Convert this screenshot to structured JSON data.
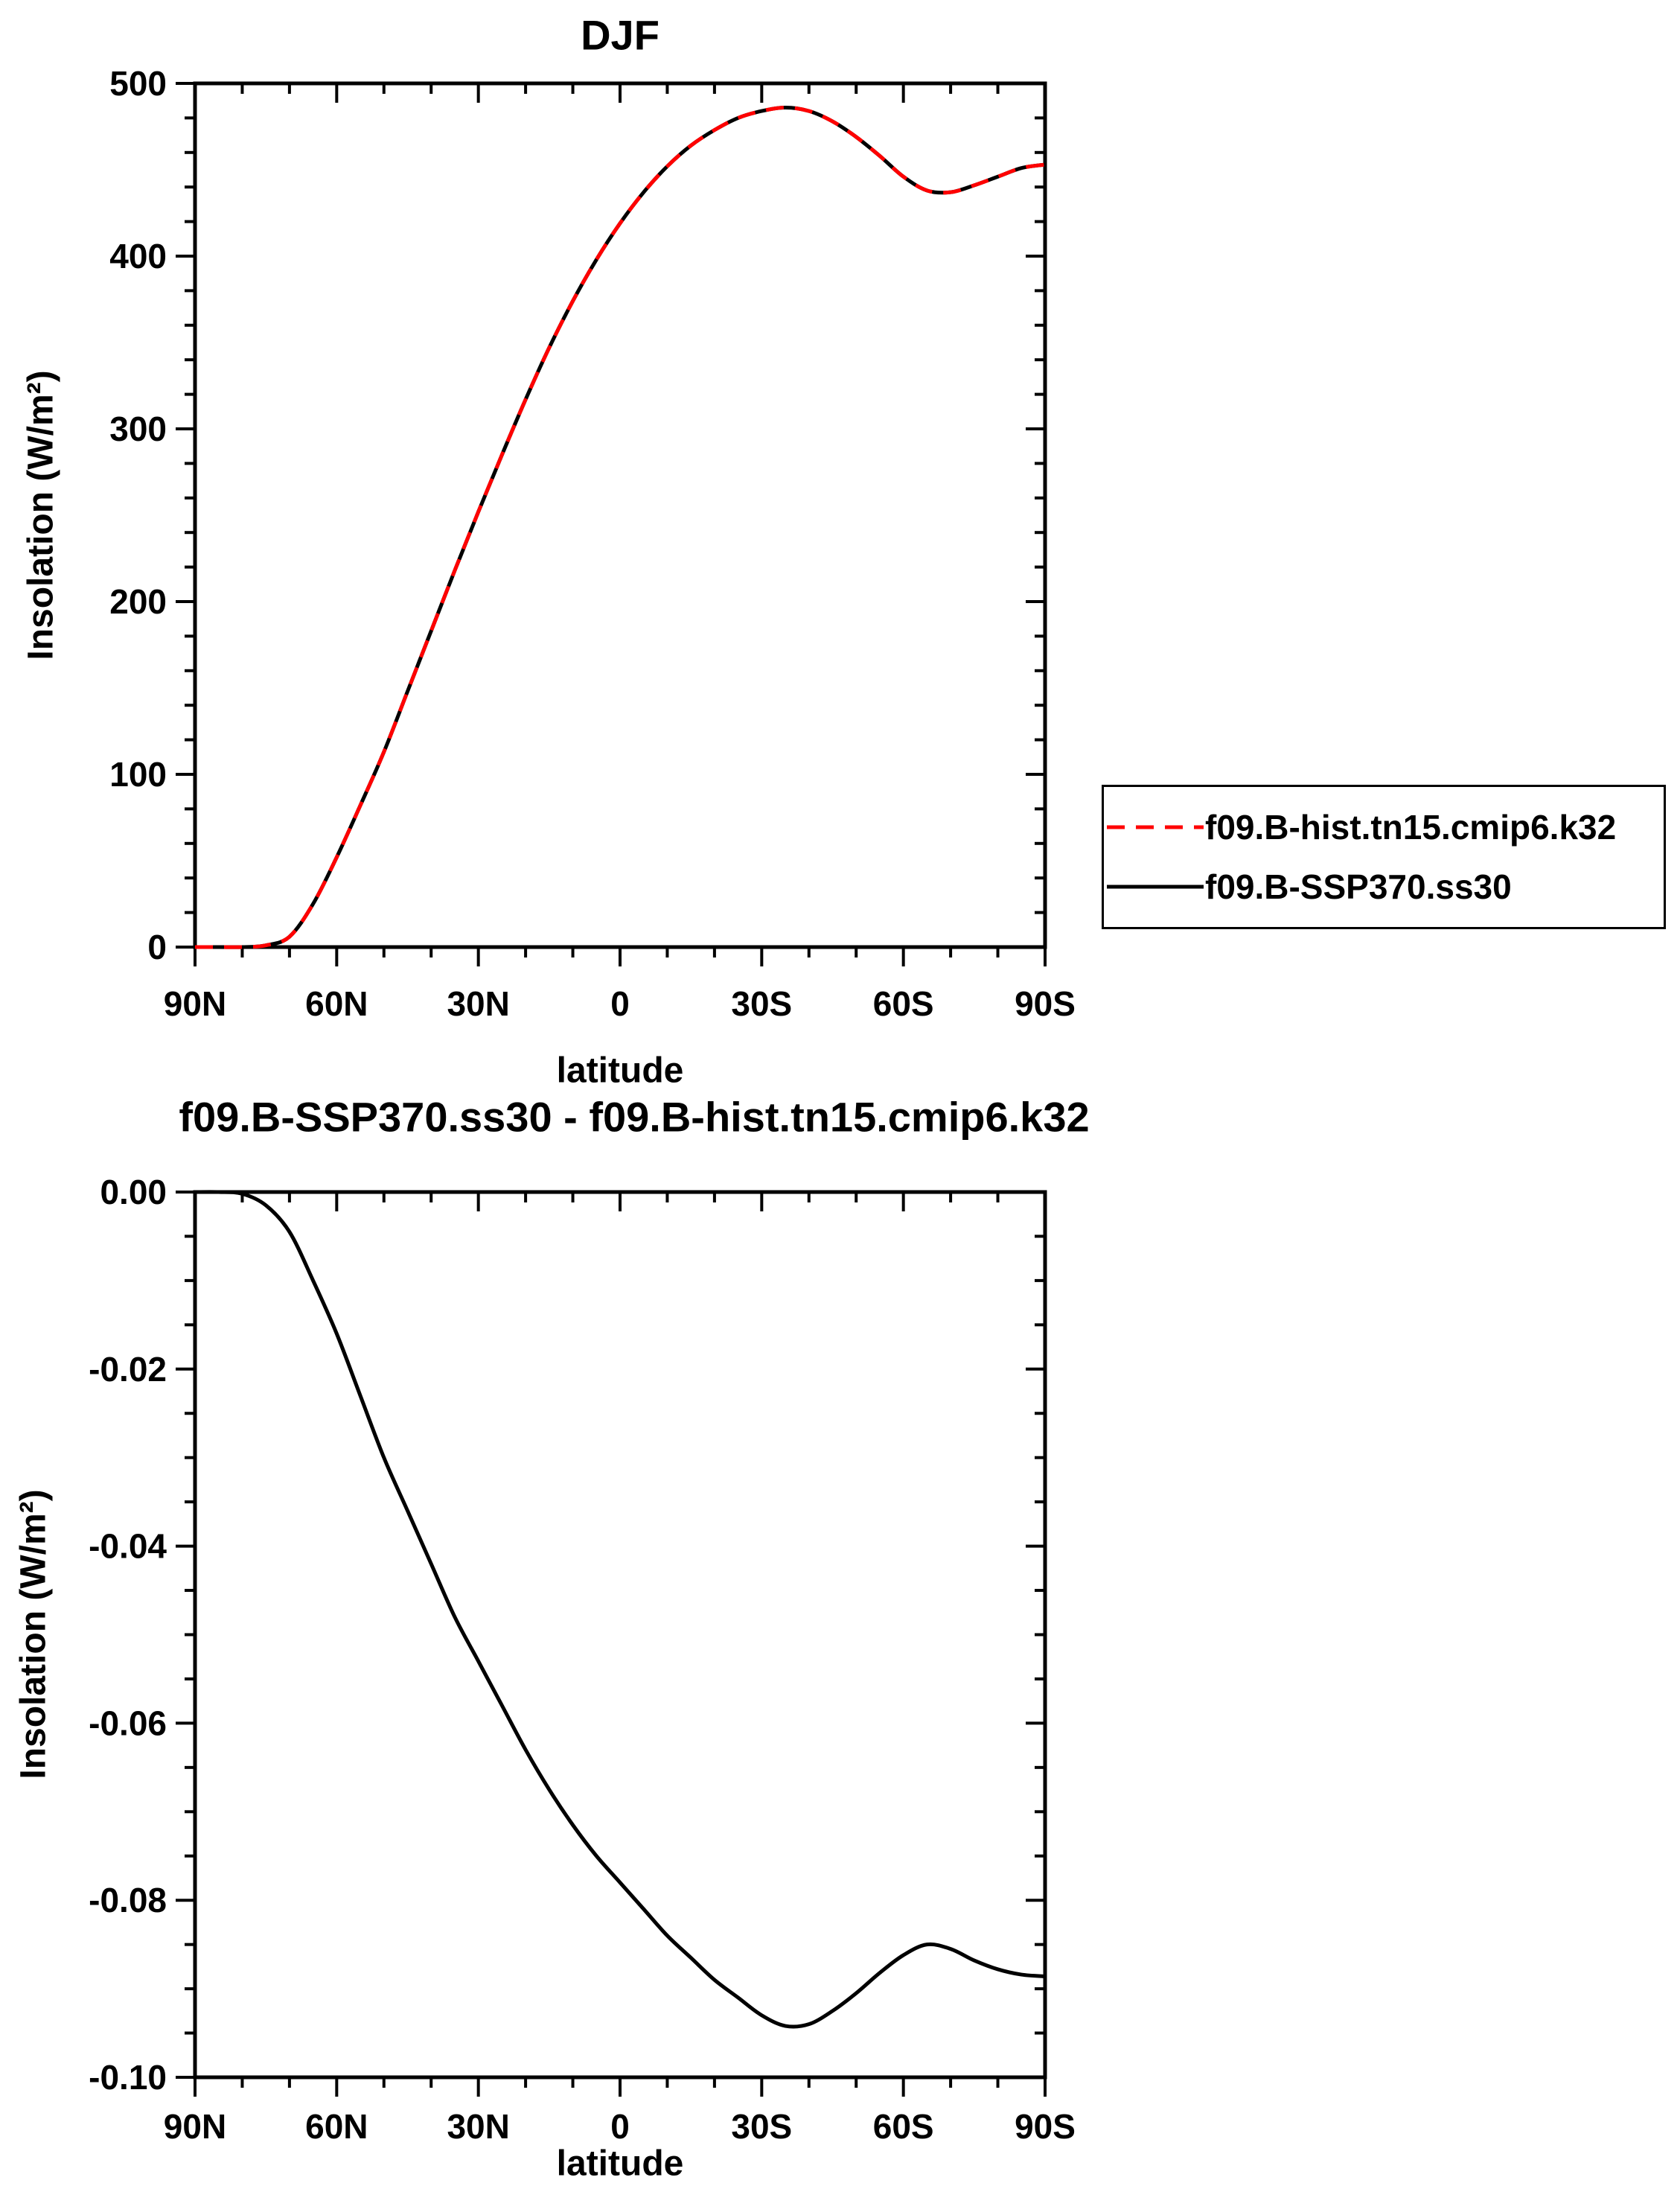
{
  "colors": {
    "hist": "#ff0000",
    "ssp": "#000000",
    "axis": "#000000",
    "background": "#ffffff"
  },
  "legend": {
    "entries": [
      {
        "label": "f09.B-hist.tn15.cmip6.k32",
        "color": "#ff0000",
        "style": "dashed"
      },
      {
        "label": "f09.B-SSP370.ss30",
        "color": "#000000",
        "style": "solid"
      }
    ],
    "position": "outside-right"
  },
  "chart_data": [
    {
      "type": "line",
      "title": "DJF",
      "xlabel": "latitude",
      "ylabel": "Insolation (W/m²)",
      "xlim": [
        90,
        -90
      ],
      "ylim": [
        0,
        500
      ],
      "grid": false,
      "xticks": {
        "values": [
          90,
          60,
          30,
          0,
          -30,
          -60,
          -90
        ],
        "labels": [
          "90N",
          "60N",
          "30N",
          "0",
          "30S",
          "60S",
          "90S"
        ],
        "minor_step": 10
      },
      "yticks": {
        "values": [
          0,
          100,
          200,
          300,
          400,
          500
        ],
        "labels": [
          "0",
          "100",
          "200",
          "300",
          "400",
          "500"
        ],
        "minor_step": 20
      },
      "series": [
        {
          "name": "f09.B-SSP370.ss30",
          "color": "#000000",
          "dash": "solid",
          "x": [
            90,
            85,
            80,
            75,
            70,
            65,
            60,
            55,
            50,
            45,
            40,
            35,
            30,
            25,
            20,
            15,
            10,
            5,
            0,
            -5,
            -10,
            -15,
            -20,
            -25,
            -30,
            -35,
            -40,
            -45,
            -50,
            -55,
            -60,
            -65,
            -70,
            -75,
            -80,
            -85,
            -90
          ],
          "y": [
            0,
            0,
            0,
            1,
            6,
            25,
            52,
            82,
            113,
            148,
            183,
            218,
            252,
            285,
            317,
            347,
            374,
            398,
            419,
            437,
            452,
            464,
            473,
            480,
            484,
            486,
            484,
            478,
            469,
            458,
            446,
            438,
            437,
            441,
            446,
            451,
            453
          ]
        },
        {
          "name": "f09.B-hist.tn15.cmip6.k32",
          "color": "#ff0000",
          "dash": "dashed",
          "x": [
            90,
            85,
            80,
            75,
            70,
            65,
            60,
            55,
            50,
            45,
            40,
            35,
            30,
            25,
            20,
            15,
            10,
            5,
            0,
            -5,
            -10,
            -15,
            -20,
            -25,
            -30,
            -35,
            -40,
            -45,
            -50,
            -55,
            -60,
            -65,
            -70,
            -75,
            -80,
            -85,
            -90
          ],
          "y": [
            0,
            0,
            0,
            1,
            6,
            25,
            52,
            82,
            113,
            148,
            183,
            218,
            252,
            285,
            317,
            347,
            374,
            398,
            419,
            437,
            452,
            464,
            473,
            480,
            484,
            486,
            484,
            478,
            469,
            458,
            446,
            438,
            437,
            441,
            446,
            451,
            453
          ]
        }
      ]
    },
    {
      "type": "line",
      "title": "f09.B-SSP370.ss30 - f09.B-hist.tn15.cmip6.k32",
      "xlabel": "latitude",
      "ylabel": "Insolation (W/m²)",
      "xlim": [
        90,
        -90
      ],
      "ylim": [
        -0.1,
        0.0
      ],
      "grid": false,
      "xticks": {
        "values": [
          90,
          60,
          30,
          0,
          -30,
          -60,
          -90
        ],
        "labels": [
          "90N",
          "60N",
          "30N",
          "0",
          "30S",
          "60S",
          "90S"
        ],
        "minor_step": 10
      },
      "yticks": {
        "values": [
          0.0,
          -0.02,
          -0.04,
          -0.06,
          -0.08,
          -0.1
        ],
        "labels": [
          "0.00",
          "-0.02",
          "-0.04",
          "-0.06",
          "-0.08",
          "-0.10"
        ],
        "minor_step": 0.005
      },
      "series": [
        {
          "name": "f09.B-SSP370.ss30 - f09.B-hist.tn15.cmip6.k32",
          "color": "#000000",
          "dash": "solid",
          "x": [
            90,
            85,
            80,
            75,
            70,
            65,
            60,
            55,
            50,
            45,
            40,
            35,
            30,
            25,
            20,
            15,
            10,
            5,
            0,
            -5,
            -10,
            -15,
            -20,
            -25,
            -30,
            -35,
            -40,
            -45,
            -50,
            -55,
            -60,
            -65,
            -70,
            -75,
            -80,
            -85,
            -90
          ],
          "y": [
            0.0,
            0.0,
            -0.0002,
            -0.0015,
            -0.0045,
            -0.01,
            -0.016,
            -0.023,
            -0.03,
            -0.036,
            -0.042,
            -0.048,
            -0.053,
            -0.058,
            -0.063,
            -0.0675,
            -0.0715,
            -0.075,
            -0.078,
            -0.081,
            -0.084,
            -0.0865,
            -0.089,
            -0.091,
            -0.093,
            -0.0942,
            -0.094,
            -0.0925,
            -0.0905,
            -0.0882,
            -0.0862,
            -0.085,
            -0.0855,
            -0.0868,
            -0.0878,
            -0.0884,
            -0.0886
          ]
        }
      ]
    }
  ]
}
